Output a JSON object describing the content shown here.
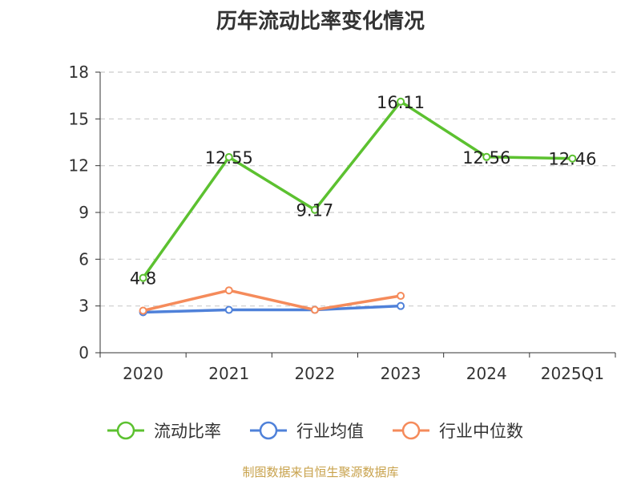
{
  "title": "历年流动比率变化情况",
  "footer": "制图数据来自恒生聚源数据库",
  "chart_data": {
    "type": "line",
    "categories": [
      "2020",
      "2021",
      "2022",
      "2023",
      "2024",
      "2025Q1"
    ],
    "ylim": [
      0,
      18
    ],
    "yticks": [
      "0",
      "3",
      "6",
      "9",
      "12",
      "15",
      "18"
    ],
    "grid": true,
    "legend_position": "bottom",
    "series": [
      {
        "name": "流动比率",
        "color": "#5cc130",
        "values": [
          4.8,
          12.55,
          9.17,
          16.11,
          12.56,
          12.46
        ],
        "labels": [
          "4.8",
          "12.55",
          "9.17",
          "16.11",
          "12.56",
          "12.46"
        ]
      },
      {
        "name": "行业均值",
        "color": "#4f81d9",
        "values": [
          2.6,
          2.75,
          2.75,
          3.0,
          null,
          null
        ]
      },
      {
        "name": "行业中位数",
        "color": "#f58b5b",
        "values": [
          2.7,
          4.0,
          2.75,
          3.65,
          null,
          null
        ]
      }
    ]
  }
}
